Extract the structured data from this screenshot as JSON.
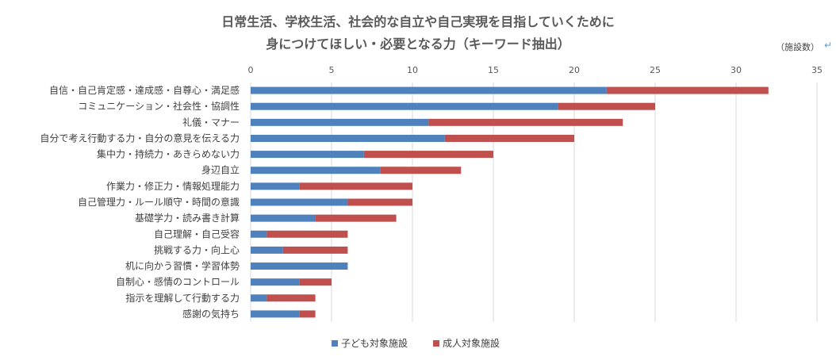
{
  "chart_data": {
    "type": "bar",
    "orientation": "horizontal",
    "stacked": true,
    "title": "日常生活、学校生活、社会的な自立や自己実現を目指していくために",
    "subtitle": "身につけてほしい・必要となる力（キーワード抽出）",
    "unit": "（施設数）",
    "unit_mark": "↵",
    "xlim": [
      0,
      35
    ],
    "xticks": [
      0,
      5,
      10,
      15,
      20,
      25,
      30,
      35
    ],
    "grid": true,
    "legend_position": "bottom",
    "categories": [
      "自信・自己肯定感・達成感・自尊心・満足感",
      "コミュニケーション・社会性・協調性",
      "礼儀・マナー",
      "自分で考え行動する力・自分の意見を伝える力",
      "集中力・持続力・あきらめない力",
      "身辺自立",
      "作業力・修正力・情報処理能力",
      "自己管理力・ルール順守・時間の意識",
      "基礎学力・読み書き計算",
      "自己理解・自己受容",
      "挑戦する力・向上心",
      "机に向かう習慣・学習体勢",
      "自制心・感情のコントロール",
      "指示を理解して行動する力",
      "感謝の気持ち"
    ],
    "series": [
      {
        "name": "子ども対象施設",
        "color": "#4f81bd",
        "values": [
          22,
          19,
          11,
          12,
          7,
          8,
          3,
          6,
          4,
          1,
          2,
          6,
          3,
          1,
          3
        ]
      },
      {
        "name": "成人対象施設",
        "color": "#c0504d",
        "values": [
          10,
          6,
          12,
          8,
          8,
          5,
          7,
          4,
          5,
          5,
          4,
          0,
          2,
          3,
          1
        ]
      }
    ]
  }
}
